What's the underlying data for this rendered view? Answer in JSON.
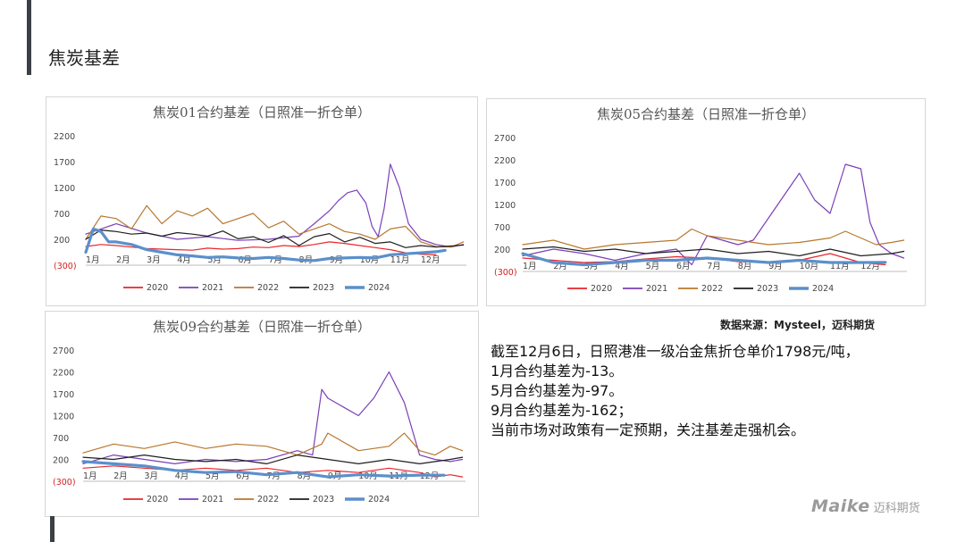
{
  "page": {
    "title": "焦炭基差",
    "source_note": "数据来源：Mysteel，迈科期货",
    "logo": {
      "mark": "Maike",
      "text": "迈科期货"
    }
  },
  "summary": {
    "lines": [
      "截至12月6日，日照港准一级冶金焦折仓单价1798元/吨，",
      "1月合约基差为-13。",
      "5月合约基差为-97。",
      "9月合约基差为-162；",
      "当前市场对政策有一定预期，关注基差走强机会。"
    ]
  },
  "series_style": [
    {
      "name": "2020",
      "color": "#e8262d",
      "width": 1.2
    },
    {
      "name": "2021",
      "color": "#7b3fb8",
      "width": 1.2
    },
    {
      "name": "2022",
      "color": "#b8772e",
      "width": 1.2
    },
    {
      "name": "2023",
      "color": "#1f1f1f",
      "width": 1.2
    },
    {
      "name": "2024",
      "color": "#5b8fcb",
      "width": 3.2
    }
  ],
  "chart_data": [
    {
      "type": "line",
      "title": "焦炭01合约基差（日照准一折仓单）",
      "ytick_labels": [
        "(300)",
        "200",
        "700",
        "1200",
        "1700",
        "2200"
      ],
      "yticks": [
        -300,
        200,
        700,
        1200,
        1700,
        2200
      ],
      "ylim": [
        -300,
        2200
      ],
      "xlim": [
        0,
        12.5
      ],
      "xtick_labels": [
        "1月",
        "2月",
        "3月",
        "4月",
        "5月",
        "6月",
        "7月",
        "8月",
        "9月",
        "10月",
        "11月",
        "12月"
      ],
      "xticks": [
        0,
        1,
        2,
        3,
        4,
        5,
        6,
        7,
        8,
        9,
        10,
        11
      ],
      "grid": false,
      "legend": "bottom",
      "series": [
        {
          "name": "2020",
          "x": [
            0,
            0.5,
            1,
            1.5,
            2,
            2.5,
            3,
            3.5,
            4,
            4.5,
            5,
            5.5,
            6,
            6.5,
            7,
            7.5,
            8,
            8.5,
            9,
            9.5,
            10,
            10.5,
            11,
            11.5
          ],
          "values": [
            60,
            100,
            80,
            50,
            20,
            10,
            0,
            -10,
            30,
            10,
            20,
            50,
            40,
            80,
            60,
            100,
            150,
            120,
            80,
            40,
            0,
            -60,
            -90,
            -100
          ]
        },
        {
          "name": "2021",
          "x": [
            0,
            1,
            2,
            3,
            4,
            5,
            6,
            7,
            7.5,
            8,
            8.3,
            8.6,
            8.9,
            9.2,
            9.4,
            9.6,
            9.8,
            10,
            10.3,
            10.6,
            11,
            11.5,
            12,
            12.4
          ],
          "values": [
            300,
            500,
            320,
            200,
            250,
            180,
            200,
            260,
            500,
            750,
            950,
            1100,
            1150,
            900,
            450,
            250,
            800,
            1650,
            1200,
            500,
            200,
            100,
            50,
            100
          ]
        },
        {
          "name": "2022",
          "x": [
            0,
            0.5,
            1,
            1.5,
            2,
            2.5,
            3,
            3.5,
            4,
            4.5,
            5,
            5.5,
            6,
            6.5,
            7,
            7.5,
            8,
            8.5,
            9,
            9.5,
            10,
            10.5,
            11,
            11.5,
            12,
            12.4
          ],
          "values": [
            200,
            650,
            600,
            400,
            850,
            500,
            750,
            650,
            800,
            500,
            600,
            700,
            420,
            550,
            300,
            400,
            500,
            350,
            300,
            200,
            400,
            450,
            150,
            60,
            50,
            150
          ]
        },
        {
          "name": "2023",
          "x": [
            0,
            0.5,
            1,
            1.5,
            2,
            2.5,
            3,
            3.5,
            4,
            4.5,
            5,
            5.5,
            6,
            6.5,
            7,
            7.5,
            8,
            8.5,
            9,
            9.5,
            10,
            10.5,
            11,
            11.5,
            12,
            12.4
          ],
          "values": [
            200,
            380,
            350,
            300,
            320,
            260,
            330,
            300,
            260,
            360,
            210,
            250,
            140,
            270,
            80,
            250,
            310,
            150,
            240,
            120,
            150,
            40,
            80,
            50,
            70,
            90
          ]
        },
        {
          "name": "2024",
          "x": [
            0,
            0.25,
            0.5,
            0.75,
            1,
            1.5,
            2,
            2.5,
            3,
            3.5,
            4,
            4.5,
            5,
            5.5,
            6,
            6.5,
            7,
            7.5,
            8,
            8.5,
            9,
            9.5,
            10,
            10.5,
            11,
            11.5,
            11.8
          ],
          "values": [
            -50,
            400,
            350,
            150,
            150,
            100,
            0,
            -50,
            -100,
            -120,
            -150,
            -140,
            -160,
            -170,
            -150,
            -170,
            -200,
            -210,
            -170,
            -160,
            -150,
            -160,
            -100,
            -80,
            -60,
            -40,
            -13
          ]
        }
      ]
    },
    {
      "type": "line",
      "title": "焦炭05合约基差（日照准一折仓单）",
      "ytick_labels": [
        "(300)",
        "200",
        "700",
        "1200",
        "1700",
        "2200",
        "2700"
      ],
      "yticks": [
        -300,
        200,
        700,
        1200,
        1700,
        2200,
        2700
      ],
      "ylim": [
        -300,
        2700
      ],
      "xlim": [
        0,
        12.5
      ],
      "xtick_labels": [
        "1月",
        "2月",
        "3月",
        "4月",
        "5月",
        "6月",
        "7月",
        "8月",
        "9月",
        "10月",
        "11月",
        "12月"
      ],
      "xticks": [
        0,
        1,
        2,
        3,
        4,
        5,
        6,
        7,
        8,
        9,
        10,
        11
      ],
      "grid": false,
      "legend": "bottom",
      "series": [
        {
          "name": "2020",
          "x": [
            0,
            1,
            2,
            3,
            4,
            5,
            6,
            7,
            8,
            9,
            10,
            11,
            11.8
          ],
          "values": [
            0,
            -50,
            -100,
            -80,
            -20,
            30,
            0,
            -80,
            -100,
            -50,
            100,
            -100,
            -150
          ]
        },
        {
          "name": "2021",
          "x": [
            0,
            1,
            2,
            3,
            4,
            5,
            5.5,
            6,
            7,
            7.5,
            8,
            8.5,
            9,
            9.5,
            10,
            10.5,
            11,
            11.3,
            11.6,
            12,
            12.4
          ],
          "values": [
            50,
            200,
            100,
            -50,
            100,
            200,
            -150,
            500,
            300,
            400,
            900,
            1400,
            1900,
            1300,
            1000,
            2100,
            2000,
            800,
            300,
            100,
            0
          ]
        },
        {
          "name": "2022",
          "x": [
            0,
            1,
            2,
            3,
            4,
            5,
            5.5,
            6,
            7,
            8,
            9,
            10,
            10.5,
            11,
            11.5,
            12,
            12.4
          ],
          "values": [
            300,
            400,
            200,
            300,
            350,
            400,
            650,
            500,
            400,
            300,
            350,
            450,
            600,
            450,
            300,
            350,
            400
          ]
        },
        {
          "name": "2023",
          "x": [
            0,
            1,
            2,
            3,
            4,
            5,
            6,
            7,
            8,
            9,
            10,
            11,
            12,
            12.4
          ],
          "values": [
            200,
            250,
            150,
            200,
            100,
            150,
            200,
            100,
            150,
            50,
            200,
            50,
            100,
            150
          ]
        },
        {
          "name": "2024",
          "x": [
            0,
            1,
            2,
            3,
            4,
            5,
            6,
            7,
            8,
            9,
            10,
            11,
            11.8
          ],
          "values": [
            100,
            -100,
            -150,
            -100,
            -50,
            -50,
            0,
            -50,
            -100,
            -50,
            -100,
            -100,
            -97
          ]
        }
      ]
    },
    {
      "type": "line",
      "title": "焦炭09合约基差（日照准一折仓单）",
      "ytick_labels": [
        "(300)",
        "200",
        "700",
        "1200",
        "1700",
        "2200",
        "2700"
      ],
      "yticks": [
        -300,
        200,
        700,
        1200,
        1700,
        2200,
        2700
      ],
      "ylim": [
        -300,
        2700
      ],
      "xlim": [
        0,
        12.5
      ],
      "xtick_labels": [
        "1月",
        "2月",
        "3月",
        "4月",
        "5月",
        "6月",
        "7月",
        "8月",
        "9月",
        "10月",
        "11月",
        "12月"
      ],
      "xticks": [
        0,
        1,
        2,
        3,
        4,
        5,
        6,
        7,
        8,
        9,
        10,
        11
      ],
      "grid": false,
      "legend": "bottom",
      "series": [
        {
          "name": "2020",
          "x": [
            0,
            1,
            2,
            3,
            4,
            5,
            6,
            7,
            8,
            9,
            10,
            11,
            11.5,
            12,
            12.4
          ],
          "values": [
            0,
            50,
            0,
            -50,
            0,
            -50,
            0,
            -100,
            -50,
            -100,
            0,
            -100,
            -200,
            -150,
            -200
          ]
        },
        {
          "name": "2021",
          "x": [
            0,
            1,
            2,
            3,
            4,
            5,
            6,
            7,
            7.5,
            7.8,
            8,
            8.5,
            9,
            9.5,
            10,
            10.5,
            11,
            11.5,
            12,
            12.4
          ],
          "values": [
            100,
            300,
            200,
            100,
            200,
            150,
            200,
            400,
            300,
            1800,
            1600,
            1400,
            1200,
            1600,
            2200,
            1500,
            300,
            200,
            150,
            200
          ]
        },
        {
          "name": "2022",
          "x": [
            0,
            1,
            2,
            3,
            4,
            5,
            6,
            7,
            7.8,
            8,
            9,
            10,
            10.5,
            11,
            11.5,
            12,
            12.4
          ],
          "values": [
            350,
            550,
            450,
            600,
            450,
            550,
            500,
            300,
            550,
            800,
            400,
            500,
            800,
            400,
            300,
            500,
            400
          ]
        },
        {
          "name": "2023",
          "x": [
            0,
            1,
            2,
            3,
            4,
            5,
            6,
            7,
            8,
            9,
            10,
            11,
            12,
            12.4
          ],
          "values": [
            250,
            200,
            300,
            200,
            150,
            200,
            100,
            300,
            200,
            100,
            200,
            100,
            200,
            250
          ]
        },
        {
          "name": "2024",
          "x": [
            0,
            1,
            2,
            3,
            4,
            5,
            6,
            7,
            8,
            9,
            10,
            11,
            11.8
          ],
          "values": [
            150,
            100,
            50,
            -50,
            -100,
            -80,
            -150,
            -100,
            -200,
            -150,
            -180,
            -160,
            -162
          ]
        }
      ]
    }
  ]
}
